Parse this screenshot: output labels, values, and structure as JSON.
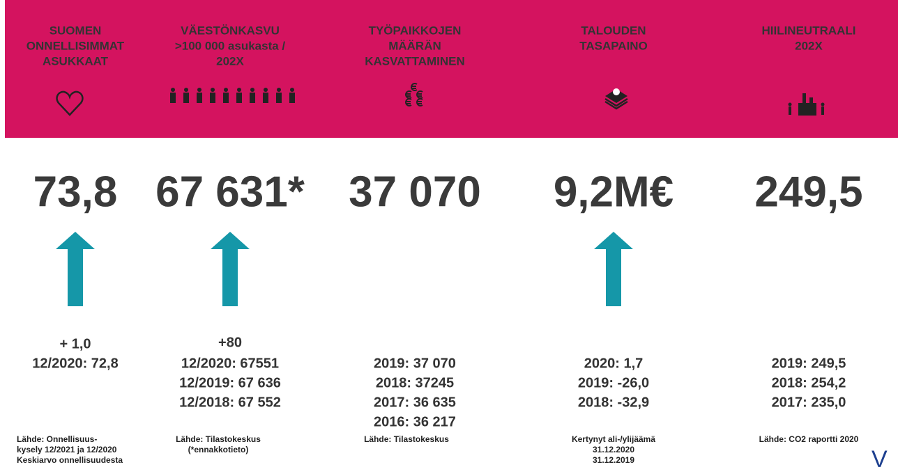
{
  "columns": [
    {
      "header": [
        "SUOMEN",
        "ONNELLISIMMAT",
        "ASUKKAAT"
      ],
      "value": "73,8",
      "arrow": true,
      "lines": [
        "+ 1,0",
        "12/2020: 72,8"
      ],
      "source": [
        "Lähde: Onnellisuus-",
        "kysely 12/2021 ja 12/2020",
        "Keskiarvo onnellisuudesta"
      ]
    },
    {
      "header": [
        "VÄESTÖNKASVU",
        ">100 000 asukasta /",
        "202X"
      ],
      "value": "67 631*",
      "arrow": true,
      "lines": [
        "+80",
        "12/2020: 67551",
        "12/2019: 67 636",
        "12/2018: 67 552"
      ],
      "source": [
        "Lähde: Tilastokeskus",
        "(*ennakkotieto)"
      ]
    },
    {
      "header": [
        "TYÖPAIKKOJEN",
        "MÄÄRÄN",
        "KASVATTAMINEN"
      ],
      "value": "37 070",
      "arrow": false,
      "lines": [
        "2019: 37 070",
        "2018: 37245",
        "2017: 36 635",
        "2016: 36 217"
      ],
      "source": [
        "Lähde: Tilastokeskus"
      ]
    },
    {
      "header": [
        "TALOUDEN",
        "TASAPAINO"
      ],
      "value": "9,2M€",
      "arrow": true,
      "lines": [
        "2020: 1,7",
        "2019: -26,0",
        "2018: -32,9"
      ],
      "source": [
        "Kertynyt ali-/ylijäämä",
        "31.12.2020",
        "31.12.2019"
      ]
    },
    {
      "header": [
        "HIILINEUTRAALI",
        "202X"
      ],
      "value": "249,5",
      "arrow": false,
      "lines": [
        "2019: 249,5",
        "2018: 254,2",
        "2017: 235,0"
      ],
      "source": [
        "Lähde: CO2 raportti 2020"
      ]
    }
  ],
  "logo": "V A A S"
}
